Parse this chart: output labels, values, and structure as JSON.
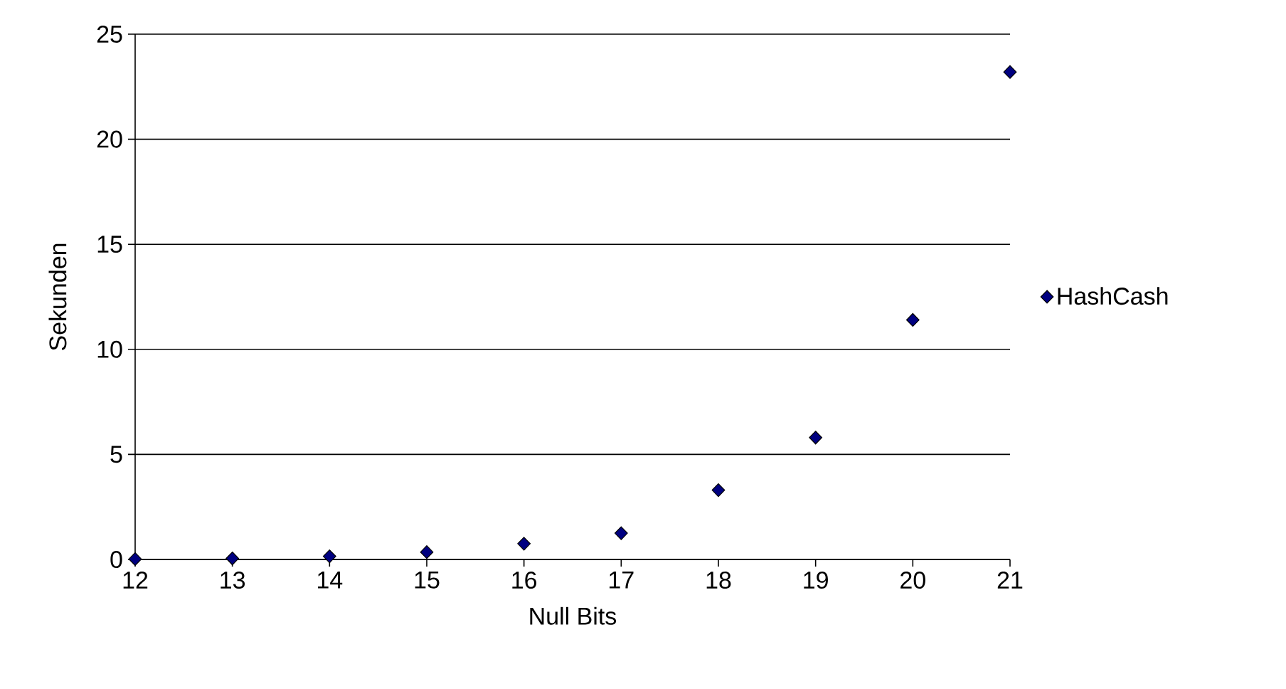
{
  "chart_data": {
    "type": "scatter",
    "xlabel": "Null Bits",
    "ylabel": "Sekunden",
    "x": [
      12,
      13,
      14,
      15,
      16,
      17,
      18,
      19,
      20,
      21
    ],
    "series": [
      {
        "name": "HashCash",
        "color": "#000080",
        "values": [
          0.02,
          0.05,
          0.15,
          0.35,
          0.75,
          1.25,
          3.3,
          5.8,
          11.4,
          23.2
        ]
      }
    ],
    "xlim": [
      12,
      21
    ],
    "xticks": [
      12,
      13,
      14,
      15,
      16,
      17,
      18,
      19,
      20,
      21
    ],
    "ylim": [
      0,
      25
    ],
    "yticks": [
      0,
      5,
      10,
      15,
      20,
      25
    ],
    "grid": "y",
    "legend": "right",
    "marker": "diamond"
  }
}
